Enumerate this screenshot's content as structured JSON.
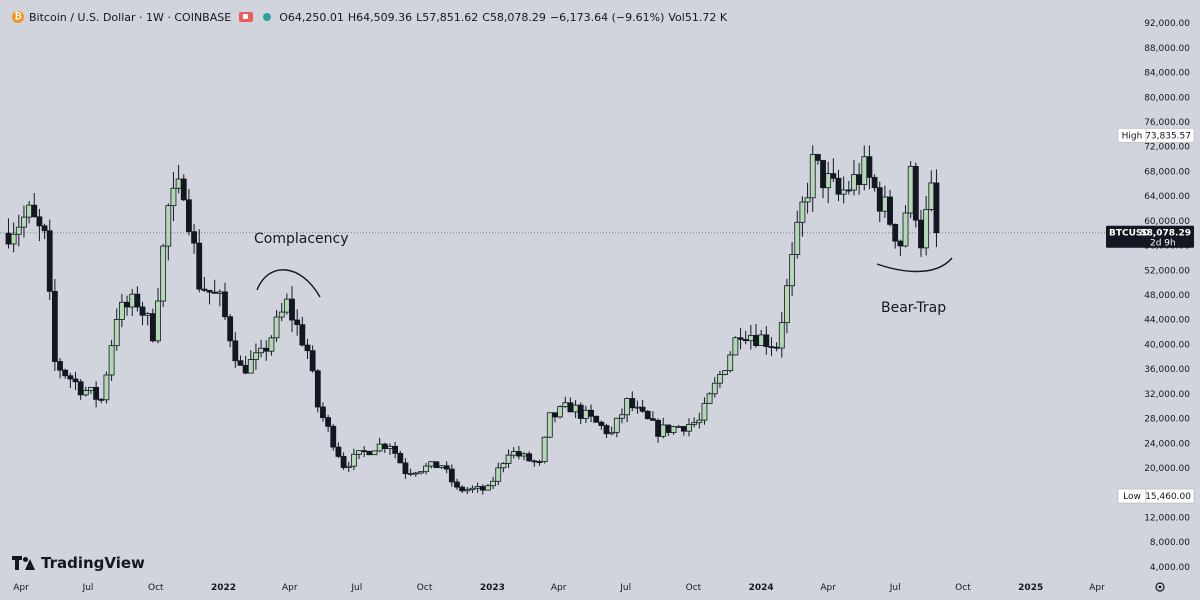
{
  "header": {
    "coin_icon": "bitcoin-icon",
    "symbol_title": "Bitcoin / U.S. Dollar · 1W · COINBASE",
    "ohlc": [
      {
        "key": "O",
        "value": "64,250.01"
      },
      {
        "key": "H",
        "value": "64,509.36"
      },
      {
        "key": "L",
        "value": "57,851.62"
      },
      {
        "key": "C",
        "value": "58,078.29"
      }
    ],
    "change": "−6,173.64 (−9.61%)",
    "volume_key": "Vol",
    "volume_value": "51.72 K",
    "colors": {
      "flag": "#f05a5a",
      "live_dot": "#26a69a"
    }
  },
  "branding": {
    "name": "TradingView"
  },
  "annotations": [
    {
      "text": "Complacency"
    },
    {
      "text": "Bear-Trap"
    }
  ],
  "markers": {
    "high": {
      "label": "High",
      "value": "73,835.57"
    },
    "low": {
      "label": "Low",
      "value": "15,460.00"
    },
    "current": {
      "label": "BTCUSD",
      "value": "58,078.29",
      "countdown": "2d 9h"
    }
  },
  "chart_data": {
    "type": "candlestick",
    "symbol": "BTCUSD",
    "interval": "1W",
    "exchange": "COINBASE",
    "y_range": [
      3000,
      93000
    ],
    "y_ticks": [
      4000,
      8000,
      12000,
      16000,
      20000,
      24000,
      28000,
      32000,
      36000,
      40000,
      44000,
      48000,
      52000,
      56000,
      60000,
      64000,
      68000,
      72000,
      76000,
      80000,
      84000,
      88000,
      92000
    ],
    "x_ticks": [
      {
        "label": "Apr",
        "date": "2021-04-01",
        "bold": false
      },
      {
        "label": "Jul",
        "date": "2021-07-01",
        "bold": false
      },
      {
        "label": "Oct",
        "date": "2021-10-01",
        "bold": false
      },
      {
        "label": "2022",
        "date": "2022-01-01",
        "bold": true
      },
      {
        "label": "Apr",
        "date": "2022-04-01",
        "bold": false
      },
      {
        "label": "Jul",
        "date": "2022-07-01",
        "bold": false
      },
      {
        "label": "Oct",
        "date": "2022-10-01",
        "bold": false
      },
      {
        "label": "2023",
        "date": "2023-01-01",
        "bold": true
      },
      {
        "label": "Apr",
        "date": "2023-04-01",
        "bold": false
      },
      {
        "label": "Jul",
        "date": "2023-07-01",
        "bold": false
      },
      {
        "label": "Oct",
        "date": "2023-10-01",
        "bold": false
      },
      {
        "label": "2024",
        "date": "2024-01-01",
        "bold": true
      },
      {
        "label": "Apr",
        "date": "2024-04-01",
        "bold": false
      },
      {
        "label": "Jul",
        "date": "2024-07-01",
        "bold": false
      },
      {
        "label": "Oct",
        "date": "2024-10-01",
        "bold": false
      },
      {
        "label": "2025",
        "date": "2025-01-01",
        "bold": true
      },
      {
        "label": "Apr",
        "date": "2025-04-01",
        "bold": false
      }
    ],
    "current_price": 58078.29,
    "colors": {
      "up": "#b2d8b4",
      "down": "#131722",
      "wick": "#131722",
      "background": "#d1d4dc",
      "price_line": "#7a7d86"
    },
    "grid": false,
    "series_anchors": [
      [
        "2021-03-08",
        58000
      ],
      [
        "2021-04-12",
        61000
      ],
      [
        "2021-05-03",
        57000
      ],
      [
        "2021-05-17",
        37000
      ],
      [
        "2021-06-21",
        33000
      ],
      [
        "2021-07-19",
        31000
      ],
      [
        "2021-08-09",
        45000
      ],
      [
        "2021-09-06",
        47000
      ],
      [
        "2021-09-27",
        42000
      ],
      [
        "2021-10-18",
        62000
      ],
      [
        "2021-11-08",
        66000
      ],
      [
        "2021-11-29",
        50000
      ],
      [
        "2021-12-27",
        47000
      ],
      [
        "2022-01-24",
        36000
      ],
      [
        "2022-02-21",
        38000
      ],
      [
        "2022-03-28",
        46500
      ],
      [
        "2022-04-25",
        39000
      ],
      [
        "2022-05-09",
        30000
      ],
      [
        "2022-06-13",
        20500
      ],
      [
        "2022-07-25",
        23500
      ],
      [
        "2022-08-15",
        24000
      ],
      [
        "2022-09-05",
        19500
      ],
      [
        "2022-10-24",
        20500
      ],
      [
        "2022-11-14",
        16500
      ],
      [
        "2022-12-26",
        16500
      ],
      [
        "2023-01-23",
        22800
      ],
      [
        "2023-03-06",
        20500
      ],
      [
        "2023-03-20",
        28000
      ],
      [
        "2023-04-17",
        30000
      ],
      [
        "2023-06-12",
        25500
      ],
      [
        "2023-07-03",
        30500
      ],
      [
        "2023-08-14",
        26000
      ],
      [
        "2023-10-09",
        27500
      ],
      [
        "2023-11-06",
        35000
      ],
      [
        "2023-12-04",
        42500
      ],
      [
        "2024-01-22",
        40000
      ],
      [
        "2024-02-26",
        62000
      ],
      [
        "2024-03-11",
        69000
      ],
      [
        "2024-04-15",
        64000
      ],
      [
        "2024-05-20",
        68000
      ],
      [
        "2024-06-17",
        62000
      ],
      [
        "2024-07-08",
        56500
      ],
      [
        "2024-07-22",
        67000
      ],
      [
        "2024-08-05",
        57000
      ],
      [
        "2024-08-19",
        64250
      ],
      [
        "2024-08-26",
        58078
      ]
    ]
  }
}
